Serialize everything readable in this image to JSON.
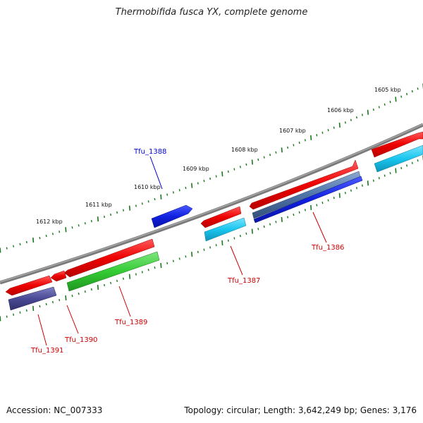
{
  "title": "Thermobifida fusca YX, complete genome",
  "footer": {
    "accession": "Accession: NC_007333",
    "stats": "Topology: circular; Length: 3,642,249 bp; Genes: 3,176"
  },
  "scale_labels": [
    "1605 kbp",
    "1606 kbp",
    "1607 kbp",
    "1608 kbp",
    "1609 kbp",
    "1610 kbp",
    "1611 kbp",
    "1612 kbp"
  ],
  "gene_labels": [
    {
      "id": "Tfu_1388",
      "color": "#0000cc"
    },
    {
      "id": "Tfu_1386",
      "color": "#cc0000"
    },
    {
      "id": "Tfu_1387",
      "color": "#cc0000"
    },
    {
      "id": "Tfu_1389",
      "color": "#cc0000"
    },
    {
      "id": "Tfu_1390",
      "color": "#cc0000"
    },
    {
      "id": "Tfu_1391",
      "color": "#cc0000"
    }
  ],
  "colors": {
    "backbone": "#808080",
    "cds_red": "#ee0000",
    "cds_blue": "#1020e0",
    "cds_cyan": "#19c6ee",
    "cds_green": "#33cc33",
    "cds_steel": "#4f74a8",
    "cds_indigo": "#4a4a96",
    "tick_green": "#1a7a1a"
  }
}
